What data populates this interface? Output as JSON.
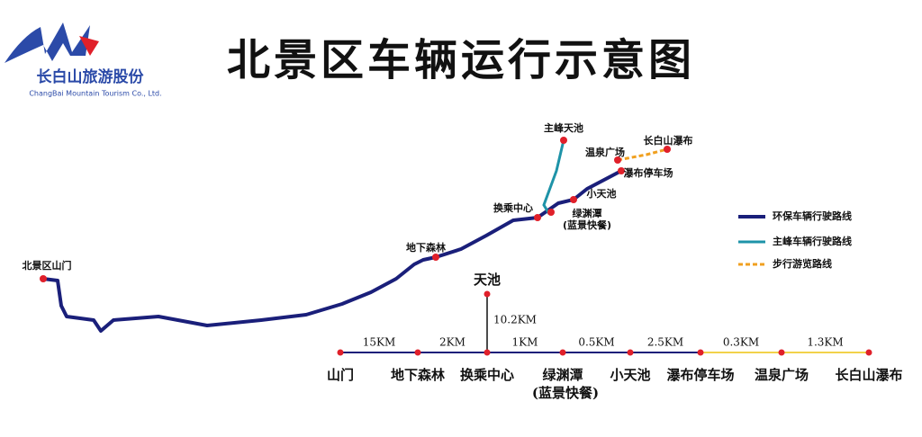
{
  "logo": {
    "name": "长白山旅游股份",
    "subtitle": "ChangBai Mountain Tourism Co., Ltd."
  },
  "title": "北景区车辆运行示意图",
  "map_labels": {
    "gate": "北景区山门",
    "forest": "地下森林",
    "transfer": "换乘中心",
    "lake": "绿渊潭",
    "restaurant": "(蓝景快餐)",
    "small_lake": "小天池",
    "parking": "瀑布停车场",
    "spring": "温泉广场",
    "waterfall": "长白山瀑布",
    "peak": "主峰天池"
  },
  "legend": [
    "环保车辆行驶路线",
    "主峰车辆行驶路线",
    "步行游览路线"
  ],
  "line_diagram": {
    "branch": {
      "name": "天池",
      "distance": "10.2KM"
    },
    "segments": [
      "15KM",
      "2KM",
      "1KM",
      "0.5KM",
      "2.5KM",
      "0.3KM",
      "1.3KM"
    ],
    "stations": [
      "山门",
      "地下森林",
      "换乘中心",
      "绿渊潭",
      "小天池",
      "瀑布停车场",
      "温泉广场",
      "长白山瀑布"
    ],
    "station_note": "(蓝景快餐)"
  }
}
